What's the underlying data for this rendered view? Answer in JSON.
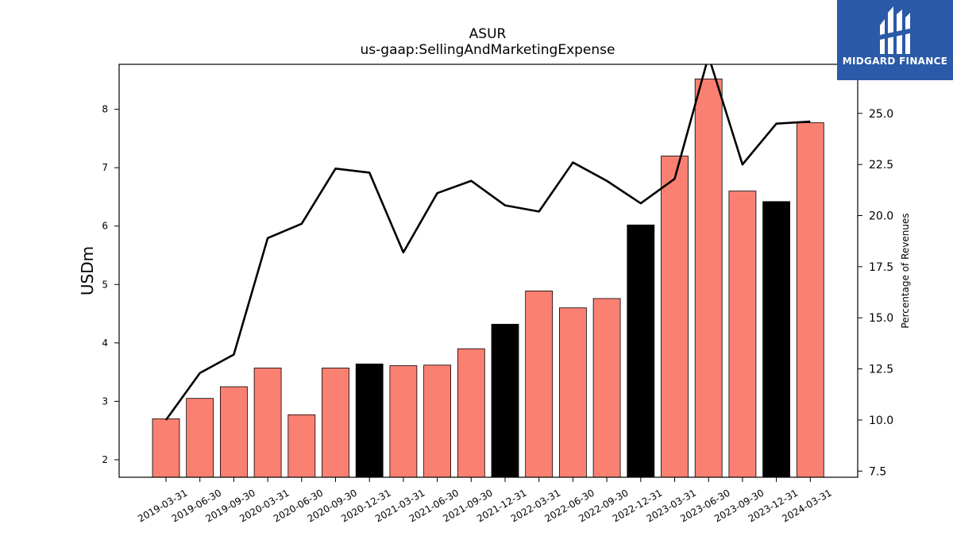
{
  "chart_data": {
    "type": "bar",
    "title": "ASUR",
    "subtitle": "us-gaap:SellingAndMarketingExpense",
    "ylabel": "USDm",
    "y2label": "Percentage of Revenues",
    "ylim": [
      1.7,
      8.77
    ],
    "y2lim": [
      7.2,
      27.4
    ],
    "yticks": [
      2,
      3,
      4,
      5,
      6,
      7,
      8
    ],
    "y2ticks": [
      "7.5",
      "10.0",
      "12.5",
      "15.0",
      "17.5",
      "20.0",
      "22.5",
      "25.0"
    ],
    "categories": [
      "2019-03-31",
      "2019-06-30",
      "2019-09-30",
      "2020-03-31",
      "2020-06-30",
      "2020-09-30",
      "2020-12-31",
      "2021-03-31",
      "2021-06-30",
      "2021-09-30",
      "2021-12-31",
      "2022-03-31",
      "2022-06-30",
      "2022-09-30",
      "2022-12-31",
      "2023-03-31",
      "2023-06-30",
      "2023-09-30",
      "2023-12-31",
      "2024-03-31"
    ],
    "series": [
      {
        "kind": "bar",
        "values": [
          2.7,
          3.05,
          3.25,
          3.57,
          2.77,
          3.57,
          3.64,
          3.61,
          3.62,
          3.9,
          4.32,
          4.89,
          4.6,
          4.76,
          6.02,
          7.2,
          8.52,
          6.6,
          6.42,
          7.77
        ],
        "colors": [
          "#fa8072",
          "#fa8072",
          "#fa8072",
          "#fa8072",
          "#fa8072",
          "#fa8072",
          "#000000",
          "#fa8072",
          "#fa8072",
          "#fa8072",
          "#000000",
          "#fa8072",
          "#fa8072",
          "#fa8072",
          "#000000",
          "#fa8072",
          "#fa8072",
          "#fa8072",
          "#000000",
          "#fa8072"
        ]
      },
      {
        "kind": "line",
        "axis": "right",
        "color": "#000000",
        "values": [
          10.0,
          12.3,
          13.2,
          18.9,
          19.6,
          22.3,
          22.1,
          18.2,
          21.1,
          21.7,
          20.5,
          20.2,
          22.6,
          21.7,
          20.6,
          21.8,
          27.8,
          22.5,
          24.5,
          24.6
        ]
      }
    ],
    "grid": false,
    "legend": "none"
  },
  "logo": {
    "text": "MIDGARD FINANCE"
  }
}
